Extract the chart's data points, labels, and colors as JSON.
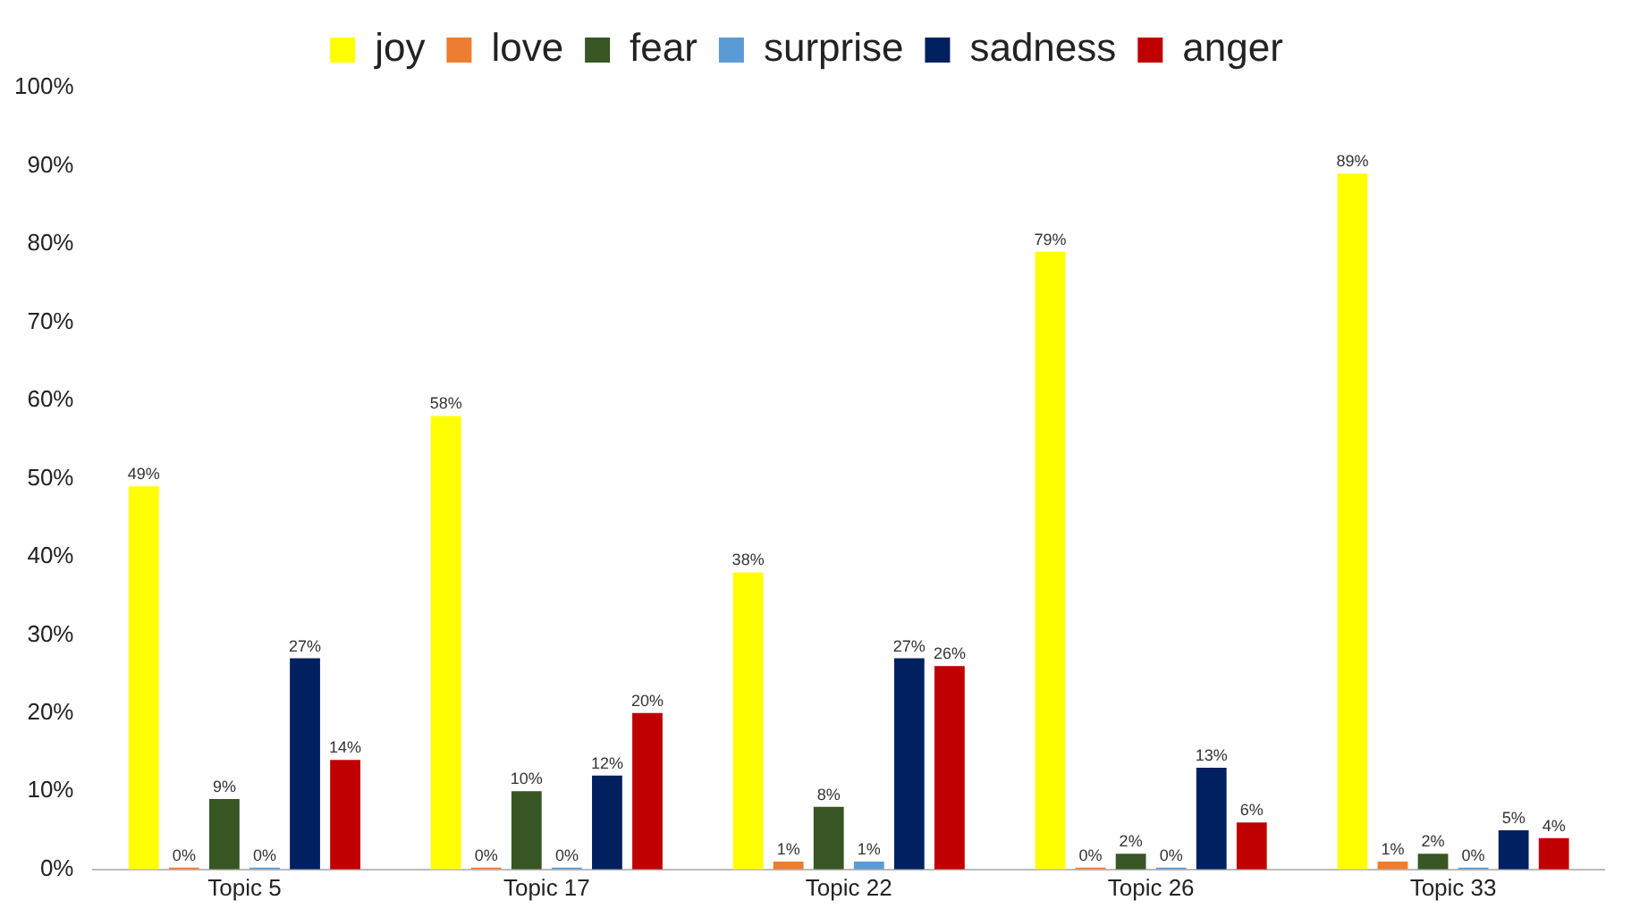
{
  "chart_data": {
    "type": "bar",
    "categories": [
      "Topic 5",
      "Topic 17",
      "Topic 22",
      "Topic 26",
      "Topic 33"
    ],
    "series": [
      {
        "name": "joy",
        "color": "#ffff00",
        "values": [
          49,
          58,
          38,
          79,
          89
        ],
        "value_labels": [
          "49%",
          "58%",
          "38%",
          "79%",
          "89%"
        ]
      },
      {
        "name": "love",
        "color": "#ed7d31",
        "values": [
          0,
          0,
          1,
          0,
          1
        ],
        "value_labels": [
          "0%",
          "0%",
          "1%",
          "0%",
          "1%"
        ]
      },
      {
        "name": "fear",
        "color": "#375623",
        "values": [
          9,
          10,
          8,
          2,
          2
        ],
        "value_labels": [
          "9%",
          "10%",
          "8%",
          "2%",
          "2%"
        ]
      },
      {
        "name": "surprise",
        "color": "#5b9bd5",
        "values": [
          0,
          0,
          1,
          0,
          0
        ],
        "value_labels": [
          "0%",
          "0%",
          "1%",
          "0%",
          "0%"
        ]
      },
      {
        "name": "sadness",
        "color": "#002060",
        "values": [
          27,
          12,
          27,
          13,
          5
        ],
        "value_labels": [
          "27%",
          "12%",
          "27%",
          "13%",
          "5%"
        ]
      },
      {
        "name": "anger",
        "color": "#c00000",
        "values": [
          14,
          20,
          26,
          6,
          4
        ],
        "value_labels": [
          "14%",
          "20%",
          "26%",
          "6%",
          "4%"
        ]
      }
    ],
    "ylim": [
      0,
      100
    ],
    "yticks": [
      {
        "value": 0,
        "label": "0%"
      },
      {
        "value": 10,
        "label": "10%"
      },
      {
        "value": 20,
        "label": "20%"
      },
      {
        "value": 30,
        "label": "30%"
      },
      {
        "value": 40,
        "label": "40%"
      },
      {
        "value": 50,
        "label": "50%"
      },
      {
        "value": 60,
        "label": "60%"
      },
      {
        "value": 70,
        "label": "70%"
      },
      {
        "value": 80,
        "label": "80%"
      },
      {
        "value": 90,
        "label": "90%"
      },
      {
        "value": 100,
        "label": "100%"
      }
    ],
    "grid": false,
    "legend": "top"
  }
}
